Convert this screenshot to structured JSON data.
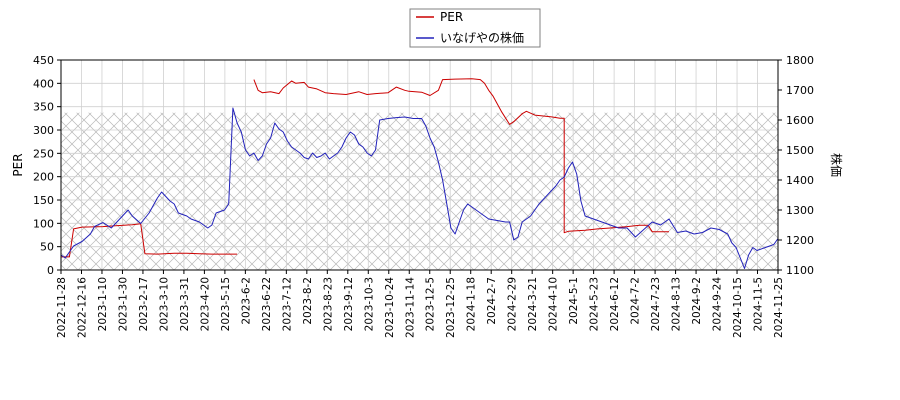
{
  "chart_data": {
    "type": "line",
    "x_ticks": [
      "2022-11-28",
      "2022-12-16",
      "2023-1-10",
      "2023-1-30",
      "2023-2-17",
      "2023-3-10",
      "2023-3-31",
      "2023-4-20",
      "2023-5-15",
      "2023-6-2",
      "2023-6-22",
      "2023-7-12",
      "2023-8-2",
      "2023-8-23",
      "2023-9-12",
      "2023-10-3",
      "2023-10-24",
      "2023-11-14",
      "2023-12-5",
      "2023-12-25",
      "2024-1-18",
      "2024-2-7",
      "2024-2-29",
      "2024-3-21",
      "2024-4-10",
      "2024-5-1",
      "2024-5-23",
      "2024-6-12",
      "2024-7-2",
      "2024-7-23",
      "2024-8-13",
      "2024-9-2",
      "2024-9-24",
      "2024-10-15",
      "2024-11-5",
      "2024-11-25"
    ],
    "left_axis": {
      "label": "PER",
      "ylim": [
        0,
        450
      ],
      "ticks": [
        0,
        50,
        100,
        150,
        200,
        250,
        300,
        350,
        400,
        450
      ]
    },
    "right_axis": {
      "label": "株価",
      "ylim": [
        1100,
        1800
      ],
      "ticks": [
        1100,
        1200,
        1300,
        1400,
        1500,
        1600,
        1700,
        1800
      ]
    },
    "hatched_band": {
      "left_axis_range": [
        0,
        337
      ]
    },
    "legend": {
      "placement": "top-center",
      "entries": [
        "PER",
        "いなげやの株価"
      ]
    },
    "series": [
      {
        "name": "PER",
        "axis": "left",
        "color": "#cc0000",
        "segments": [
          [
            [
              0,
              28
            ],
            [
              2,
              28
            ],
            [
              3,
              88
            ],
            [
              5,
              92
            ],
            [
              10,
              93
            ],
            [
              13,
              95
            ],
            [
              17,
              97
            ],
            [
              19,
              99
            ],
            [
              20,
              35
            ],
            [
              23,
              34
            ],
            [
              27,
              36
            ],
            [
              30,
              36
            ],
            [
              33,
              35
            ],
            [
              36,
              34
            ],
            [
              40,
              34
            ],
            [
              42,
              34
            ]
          ],
          [
            [
              46,
              408
            ],
            [
              47,
              385
            ],
            [
              48,
              380
            ],
            [
              50,
              382
            ],
            [
              52,
              378
            ],
            [
              53,
              390
            ],
            [
              55,
              405
            ],
            [
              56,
              400
            ],
            [
              58,
              402
            ],
            [
              59,
              392
            ],
            [
              61,
              388
            ],
            [
              63,
              380
            ],
            [
              65,
              378
            ],
            [
              68,
              376
            ],
            [
              71,
              382
            ],
            [
              73,
              376
            ],
            [
              75,
              378
            ],
            [
              78,
              380
            ],
            [
              80,
              392
            ],
            [
              82,
              385
            ],
            [
              83,
              383
            ],
            [
              86,
              381
            ],
            [
              88,
              374
            ],
            [
              90,
              385
            ],
            [
              91,
              408
            ],
            [
              94,
              409
            ],
            [
              98,
              410
            ],
            [
              100,
              408
            ],
            [
              101,
              400
            ],
            [
              102,
              385
            ],
            [
              103,
              373
            ],
            [
              105,
              340
            ],
            [
              107,
              312
            ],
            [
              108,
              318
            ],
            [
              110,
              335
            ],
            [
              111,
              340
            ],
            [
              113,
              332
            ],
            [
              115,
              330
            ],
            [
              117,
              328
            ],
            [
              119,
              325
            ],
            [
              120,
              325
            ],
            [
              120,
              80
            ],
            [
              121,
              83
            ],
            [
              125,
              85
            ],
            [
              128,
              88
            ],
            [
              131,
              90
            ],
            [
              135,
              93
            ],
            [
              138,
              96
            ],
            [
              140,
              96
            ],
            [
              141,
              82
            ],
            [
              143,
              82
            ],
            [
              145,
              82
            ]
          ]
        ]
      },
      {
        "name": "いなげやの株価",
        "axis": "right",
        "color": "#2222bb",
        "points": [
          [
            0,
            1150
          ],
          [
            1,
            1140
          ],
          [
            2,
            1160
          ],
          [
            3,
            1180
          ],
          [
            5,
            1195
          ],
          [
            7,
            1220
          ],
          [
            8,
            1245
          ],
          [
            10,
            1258
          ],
          [
            12,
            1240
          ],
          [
            14,
            1270
          ],
          [
            16,
            1300
          ],
          [
            17,
            1280
          ],
          [
            19,
            1255
          ],
          [
            21,
            1290
          ],
          [
            23,
            1340
          ],
          [
            24,
            1360
          ],
          [
            26,
            1330
          ],
          [
            27,
            1320
          ],
          [
            28,
            1290
          ],
          [
            30,
            1280
          ],
          [
            31,
            1270
          ],
          [
            33,
            1260
          ],
          [
            35,
            1240
          ],
          [
            36,
            1250
          ],
          [
            37,
            1290
          ],
          [
            39,
            1300
          ],
          [
            40,
            1320
          ],
          [
            41,
            1640
          ],
          [
            42,
            1590
          ],
          [
            43,
            1560
          ],
          [
            44,
            1500
          ],
          [
            45,
            1480
          ],
          [
            46,
            1490
          ],
          [
            47,
            1465
          ],
          [
            48,
            1480
          ],
          [
            49,
            1520
          ],
          [
            50,
            1540
          ],
          [
            51,
            1590
          ],
          [
            52,
            1570
          ],
          [
            53,
            1560
          ],
          [
            54,
            1530
          ],
          [
            55,
            1510
          ],
          [
            56,
            1500
          ],
          [
            57,
            1490
          ],
          [
            58,
            1475
          ],
          [
            59,
            1470
          ],
          [
            60,
            1490
          ],
          [
            61,
            1475
          ],
          [
            62,
            1480
          ],
          [
            63,
            1490
          ],
          [
            64,
            1470
          ],
          [
            65,
            1480
          ],
          [
            66,
            1490
          ],
          [
            67,
            1510
          ],
          [
            68,
            1540
          ],
          [
            69,
            1560
          ],
          [
            70,
            1550
          ],
          [
            71,
            1520
          ],
          [
            72,
            1510
          ],
          [
            73,
            1490
          ],
          [
            74,
            1480
          ],
          [
            75,
            1500
          ],
          [
            76,
            1600
          ],
          [
            78,
            1605
          ],
          [
            80,
            1608
          ],
          [
            82,
            1610
          ],
          [
            84,
            1605
          ],
          [
            86,
            1605
          ],
          [
            87,
            1580
          ],
          [
            88,
            1540
          ],
          [
            89,
            1510
          ],
          [
            90,
            1460
          ],
          [
            91,
            1400
          ],
          [
            92,
            1320
          ],
          [
            93,
            1240
          ],
          [
            94,
            1220
          ],
          [
            95,
            1260
          ],
          [
            96,
            1300
          ],
          [
            97,
            1320
          ],
          [
            98,
            1310
          ],
          [
            99,
            1300
          ],
          [
            100,
            1290
          ],
          [
            102,
            1270
          ],
          [
            104,
            1265
          ],
          [
            106,
            1260
          ],
          [
            107,
            1260
          ],
          [
            108,
            1200
          ],
          [
            109,
            1210
          ],
          [
            110,
            1260
          ],
          [
            112,
            1280
          ],
          [
            114,
            1320
          ],
          [
            116,
            1350
          ],
          [
            118,
            1380
          ],
          [
            119,
            1400
          ],
          [
            120,
            1410
          ],
          [
            121,
            1440
          ],
          [
            122,
            1460
          ],
          [
            123,
            1420
          ],
          [
            124,
            1330
          ],
          [
            125,
            1280
          ],
          [
            127,
            1270
          ],
          [
            129,
            1260
          ],
          [
            131,
            1250
          ],
          [
            133,
            1240
          ],
          [
            135,
            1240
          ],
          [
            137,
            1210
          ],
          [
            139,
            1235
          ],
          [
            141,
            1260
          ],
          [
            143,
            1250
          ],
          [
            145,
            1270
          ],
          [
            147,
            1225
          ],
          [
            149,
            1230
          ],
          [
            151,
            1220
          ],
          [
            153,
            1225
          ],
          [
            155,
            1240
          ],
          [
            157,
            1235
          ],
          [
            159,
            1220
          ],
          [
            160,
            1190
          ],
          [
            161,
            1175
          ],
          [
            162,
            1140
          ],
          [
            163,
            1105
          ],
          [
            164,
            1150
          ],
          [
            165,
            1175
          ],
          [
            166,
            1165
          ],
          [
            168,
            1175
          ],
          [
            170,
            1185
          ],
          [
            171,
            1205
          ]
        ]
      }
    ]
  }
}
